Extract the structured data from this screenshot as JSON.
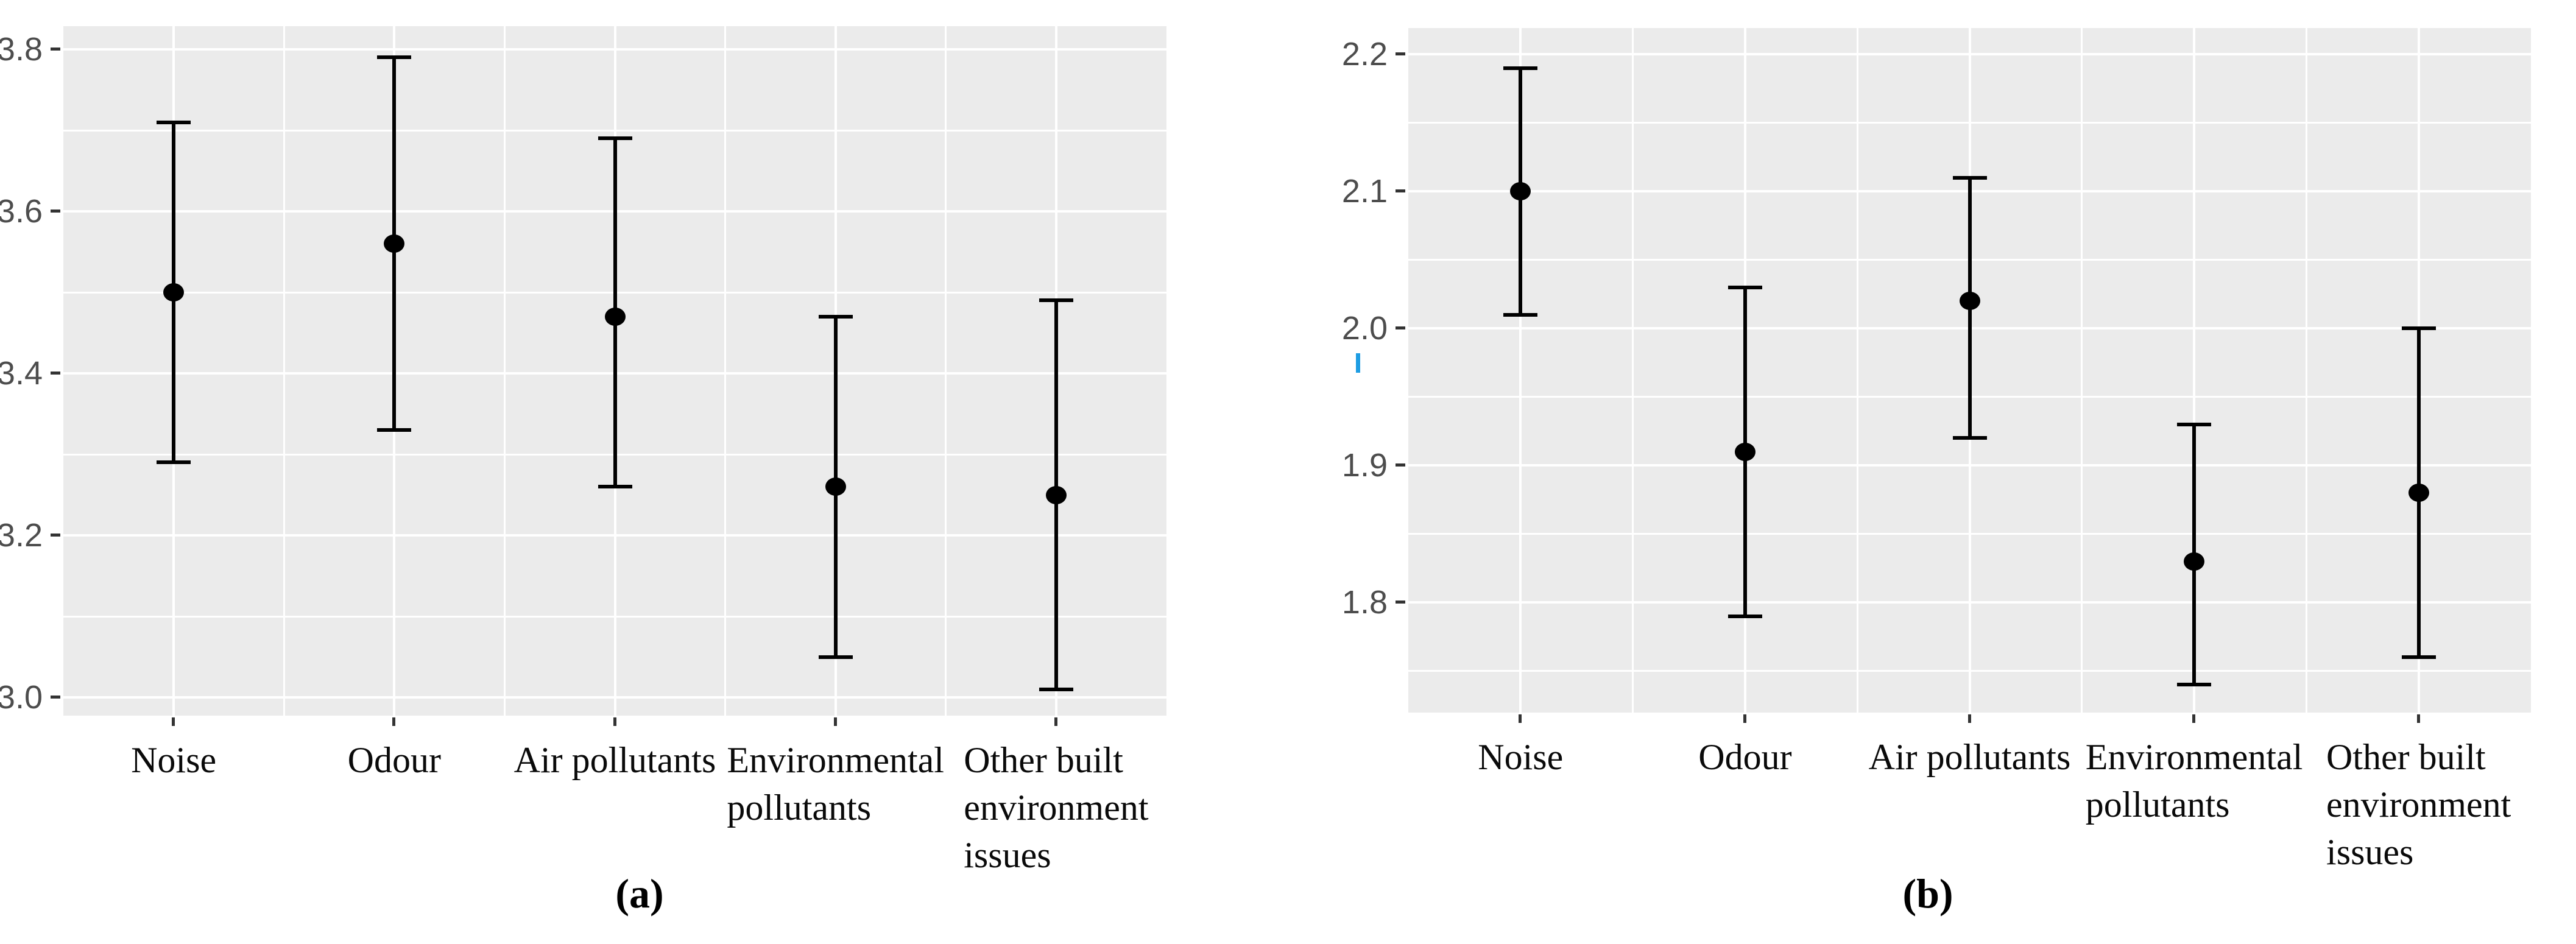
{
  "figure": {
    "colors": {
      "background": "#ffffff",
      "panel_background": "#ebebeb",
      "gridline": "#ffffff",
      "marker": "#000000",
      "axis_tick": "#333333",
      "y_tick_label": "#4d4d4d",
      "category_label": "#0a0a0a",
      "artifact_blue": "#1e9de3"
    }
  },
  "chart_data": [
    {
      "id": "a",
      "type": "pointrange",
      "caption": "(a)",
      "title": "",
      "grid": true,
      "legend": false,
      "categories": [
        "Noise",
        "Odour",
        "Air pollutants",
        "Environmental pollutants",
        "Other built environment issues"
      ],
      "category_lines": [
        [
          "Noise"
        ],
        [
          "Odour"
        ],
        [
          "Air pollutants"
        ],
        [
          "Environmental",
          "pollutants"
        ],
        [
          "Other built",
          "environment",
          "issues"
        ]
      ],
      "series": [
        {
          "name": "mean",
          "values": [
            3.5,
            3.56,
            3.47,
            3.26,
            3.25
          ]
        }
      ],
      "ci_low": [
        3.29,
        3.33,
        3.26,
        3.05,
        3.01
      ],
      "ci_high": [
        3.71,
        3.79,
        3.69,
        3.47,
        3.49
      ],
      "ylim": [
        2.97,
        3.83
      ],
      "yticks": [
        3.0,
        3.2,
        3.4,
        3.6,
        3.8
      ],
      "ytick_labels": [
        "3.0",
        "3.2",
        "3.4",
        "3.6",
        "3.8"
      ],
      "yminor": [
        3.1,
        3.3,
        3.5,
        3.7
      ]
    },
    {
      "id": "b",
      "type": "pointrange",
      "caption": "(b)",
      "title": "",
      "grid": true,
      "legend": false,
      "categories": [
        "Noise",
        "Odour",
        "Air pollutants",
        "Environmental pollutants",
        "Other built environment issues"
      ],
      "category_lines": [
        [
          "Noise"
        ],
        [
          "Odour"
        ],
        [
          "Air pollutants"
        ],
        [
          "Environmental",
          "pollutants"
        ],
        [
          "Other built",
          "environment",
          "issues"
        ]
      ],
      "series": [
        {
          "name": "mean",
          "values": [
            2.1,
            1.91,
            2.02,
            1.83,
            1.88
          ]
        }
      ],
      "ci_low": [
        2.01,
        1.79,
        1.92,
        1.74,
        1.76
      ],
      "ci_high": [
        2.19,
        2.03,
        2.11,
        1.93,
        2.0
      ],
      "ylim": [
        1.72,
        2.22
      ],
      "yticks": [
        1.8,
        1.9,
        2.0,
        2.1,
        2.2
      ],
      "ytick_labels": [
        "1.8",
        "1.9",
        "2.0",
        "2.1",
        "2.2"
      ],
      "yminor": [
        1.75,
        1.85,
        1.95,
        2.05,
        2.15
      ]
    }
  ]
}
